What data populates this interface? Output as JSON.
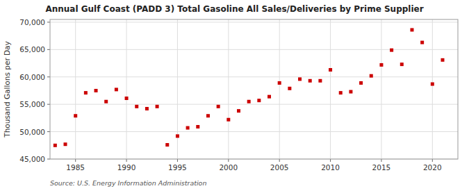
{
  "chart_data": {
    "type": "scatter",
    "title": "Annual Gulf Coast (PADD 3) Total Gasoline All Sales/Deliveries by Prime Supplier",
    "ylabel": "Thousand Gallons per Day",
    "source": "Source: U.S. Energy Information Administration",
    "color": "#cc0000",
    "marker": "square",
    "grid": true,
    "xlim": [
      1982.5,
      2022.5
    ],
    "ylim": [
      45000,
      70500
    ],
    "xticks": [
      1985,
      1990,
      1995,
      2000,
      2005,
      2010,
      2015,
      2020
    ],
    "yticks": [
      {
        "value": 45000,
        "label": "45,000"
      },
      {
        "value": 50000,
        "label": "50,000"
      },
      {
        "value": 55000,
        "label": "55,000"
      },
      {
        "value": 60000,
        "label": "60,000"
      },
      {
        "value": 65000,
        "label": "65,000"
      },
      {
        "value": 70000,
        "label": "70,000"
      }
    ],
    "x": [
      1983,
      1984,
      1985,
      1986,
      1987,
      1988,
      1989,
      1990,
      1991,
      1992,
      1993,
      1994,
      1995,
      1996,
      1997,
      1998,
      1999,
      2000,
      2001,
      2002,
      2003,
      2004,
      2005,
      2006,
      2007,
      2008,
      2009,
      2010,
      2011,
      2012,
      2013,
      2014,
      2015,
      2016,
      2017,
      2018,
      2019,
      2020,
      2021
    ],
    "values": [
      47500,
      47700,
      52900,
      57100,
      57500,
      55500,
      57700,
      56100,
      54600,
      54200,
      54600,
      47600,
      49200,
      50700,
      50900,
      52900,
      54600,
      52200,
      53800,
      55500,
      55700,
      56400,
      58900,
      57900,
      59600,
      59300,
      59300,
      61300,
      57100,
      57300,
      58900,
      60200,
      62200,
      64900,
      62300,
      68600,
      66300,
      58700,
      63100
    ]
  }
}
